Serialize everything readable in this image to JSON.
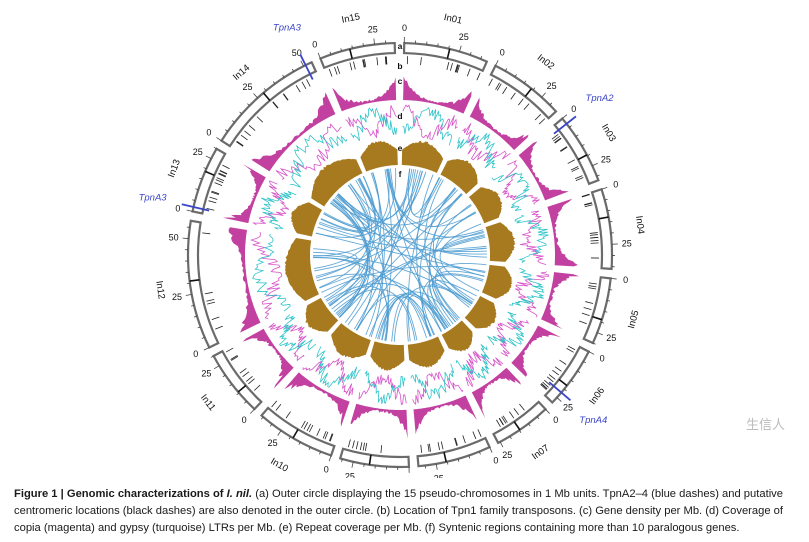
{
  "figure": {
    "chromosomes": [
      {
        "name": "In01",
        "size": 38
      },
      {
        "name": "In02",
        "size": 34
      },
      {
        "name": "In03",
        "size": 32
      },
      {
        "name": "In04",
        "size": 36
      },
      {
        "name": "In05",
        "size": 30
      },
      {
        "name": "In06",
        "size": 28
      },
      {
        "name": "In07",
        "size": 26
      },
      {
        "name": "In08",
        "size": 33
      },
      {
        "name": "In09",
        "size": 31
      },
      {
        "name": "In10",
        "size": 36
      },
      {
        "name": "In11",
        "size": 30
      },
      {
        "name": "In12",
        "size": 58
      },
      {
        "name": "In13",
        "size": 30
      },
      {
        "name": "In14",
        "size": 54
      },
      {
        "name": "In15",
        "size": 34
      }
    ],
    "tick_labels": [
      "0",
      "25",
      "50"
    ],
    "track_letters": [
      "a",
      "b",
      "c",
      "d",
      "e",
      "f"
    ],
    "transposons": [
      {
        "label": "TpnA2",
        "chromosome": "In03",
        "position_mb": 3
      },
      {
        "label": "TpnA3",
        "chromosome": "In13",
        "position_mb": 2
      },
      {
        "label": "TpnA3",
        "chromosome": "In14",
        "position_mb": 51
      },
      {
        "label": "TpnA4",
        "chromosome": "In06",
        "position_mb": 22
      }
    ],
    "colors": {
      "chromosome": "#6b6b6b",
      "gene_density": "#c2409f",
      "copia": "#d654c8",
      "gypsy": "#2fc4c9",
      "repeat": "#a87a1f",
      "synteny": "#4a9ad0",
      "transposon": "#3a45c8"
    }
  },
  "caption": {
    "label": "Figure 1 | Genomic characterizations of",
    "species": "I. nil.",
    "text": " (a) Outer circle displaying the 15 pseudo-chromosomes in 1 Mb units. TpnA2–4 (blue dashes) and putative centromeric locations (black dashes) are also denoted in the outer circle. (b) Location of Tpn1 family transposons. (c) Gene density per Mb. (d) Coverage of copia (magenta) and gypsy (turquoise) LTRs per Mb. (e) Repeat coverage per Mb. (f) Syntenic regions containing more than 10 paralogous genes."
  },
  "watermark": "生信人"
}
